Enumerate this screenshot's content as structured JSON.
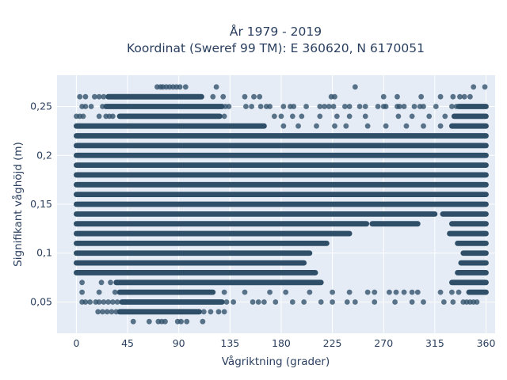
{
  "chart_data": {
    "type": "scatter",
    "title_line1": "År 1979 - 2019",
    "title_line2": "Koordinat (Sweref 99 TM): E 360620, N 6170051",
    "xlabel": "Vågriktning (grader)",
    "ylabel": "Signifikant våghöjd (m)",
    "xlim": [
      -17,
      368
    ],
    "ylim": [
      0.018,
      0.282
    ],
    "xticks": [
      0,
      45,
      90,
      135,
      180,
      225,
      270,
      315,
      360
    ],
    "xtick_labels": [
      "0",
      "45",
      "90",
      "135",
      "180",
      "225",
      "270",
      "315",
      "360"
    ],
    "yticks": [
      0.05,
      0.1,
      0.15,
      0.2,
      0.25
    ],
    "ytick_labels": [
      "0,05",
      "0,1",
      "0,15",
      "0,2",
      "0,25"
    ],
    "grid": true,
    "legend": "none",
    "colors": {
      "plot_background": "#e5ecf6",
      "grid": "#ffffff",
      "marker": "#2f4f69",
      "text": "#2a3f5f"
    },
    "series": [
      {
        "points": [
          [
            71,
            0.27
          ],
          [
            74,
            0.27
          ],
          [
            76,
            0.27
          ],
          [
            79,
            0.27
          ],
          [
            82,
            0.27
          ],
          [
            85,
            0.27
          ],
          [
            88,
            0.27
          ],
          [
            91,
            0.27
          ],
          [
            96,
            0.27
          ],
          [
            123,
            0.27
          ],
          [
            245,
            0.27
          ],
          [
            349,
            0.27
          ],
          [
            359,
            0.27
          ],
          [
            3,
            0.26
          ],
          [
            8,
            0.26
          ],
          [
            16,
            0.26
          ],
          [
            20,
            0.26
          ],
          [
            24,
            0.26
          ],
          [
            120,
            0.26
          ],
          [
            129,
            0.26
          ],
          [
            148,
            0.26
          ],
          [
            156,
            0.26
          ],
          [
            161,
            0.26
          ],
          [
            224,
            0.26
          ],
          [
            227,
            0.26
          ],
          [
            270,
            0.26
          ],
          [
            282,
            0.26
          ],
          [
            303,
            0.26
          ],
          [
            320,
            0.26
          ],
          [
            331,
            0.26
          ],
          [
            337,
            0.26
          ],
          [
            341,
            0.26
          ],
          [
            346,
            0.26
          ],
          [
            5,
            0.25
          ],
          [
            8,
            0.25
          ],
          [
            13,
            0.25
          ],
          [
            23,
            0.25
          ],
          [
            131,
            0.25
          ],
          [
            134,
            0.25
          ],
          [
            149,
            0.25
          ],
          [
            154,
            0.25
          ],
          [
            162,
            0.25
          ],
          [
            167,
            0.25
          ],
          [
            170,
            0.25
          ],
          [
            182,
            0.25
          ],
          [
            188,
            0.25
          ],
          [
            191,
            0.25
          ],
          [
            202,
            0.25
          ],
          [
            214,
            0.25
          ],
          [
            218,
            0.25
          ],
          [
            222,
            0.25
          ],
          [
            226,
            0.25
          ],
          [
            236,
            0.25
          ],
          [
            240,
            0.25
          ],
          [
            249,
            0.25
          ],
          [
            254,
            0.25
          ],
          [
            265,
            0.25
          ],
          [
            270,
            0.25
          ],
          [
            272,
            0.25
          ],
          [
            282,
            0.25
          ],
          [
            284,
            0.25
          ],
          [
            288,
            0.25
          ],
          [
            297,
            0.25
          ],
          [
            302,
            0.25
          ],
          [
            305,
            0.25
          ],
          [
            316,
            0.25
          ],
          [
            330,
            0.25
          ],
          [
            334,
            0.25
          ],
          [
            0,
            0.24
          ],
          [
            3,
            0.24
          ],
          [
            6,
            0.24
          ],
          [
            20,
            0.24
          ],
          [
            26,
            0.24
          ],
          [
            29,
            0.24
          ],
          [
            32,
            0.24
          ],
          [
            130,
            0.24
          ],
          [
            174,
            0.24
          ],
          [
            180,
            0.24
          ],
          [
            190,
            0.24
          ],
          [
            198,
            0.24
          ],
          [
            214,
            0.24
          ],
          [
            229,
            0.24
          ],
          [
            240,
            0.24
          ],
          [
            254,
            0.24
          ],
          [
            283,
            0.24
          ],
          [
            295,
            0.24
          ],
          [
            310,
            0.24
          ],
          [
            324,
            0.24
          ],
          [
            182,
            0.23
          ],
          [
            195,
            0.23
          ],
          [
            211,
            0.23
          ],
          [
            227,
            0.23
          ],
          [
            237,
            0.23
          ],
          [
            256,
            0.23
          ],
          [
            272,
            0.23
          ],
          [
            290,
            0.23
          ],
          [
            305,
            0.23
          ],
          [
            320,
            0.23
          ],
          [
            5,
            0.07
          ],
          [
            22,
            0.07
          ],
          [
            30,
            0.07
          ],
          [
            5,
            0.06
          ],
          [
            20,
            0.06
          ],
          [
            34,
            0.06
          ],
          [
            130,
            0.06
          ],
          [
            148,
            0.06
          ],
          [
            170,
            0.06
          ],
          [
            184,
            0.06
          ],
          [
            205,
            0.06
          ],
          [
            225,
            0.06
          ],
          [
            240,
            0.06
          ],
          [
            256,
            0.06
          ],
          [
            262,
            0.06
          ],
          [
            275,
            0.06
          ],
          [
            281,
            0.06
          ],
          [
            288,
            0.06
          ],
          [
            295,
            0.06
          ],
          [
            300,
            0.06
          ],
          [
            320,
            0.06
          ],
          [
            330,
            0.06
          ],
          [
            336,
            0.06
          ],
          [
            5,
            0.05
          ],
          [
            8,
            0.05
          ],
          [
            12,
            0.05
          ],
          [
            17,
            0.05
          ],
          [
            20,
            0.05
          ],
          [
            24,
            0.05
          ],
          [
            28,
            0.05
          ],
          [
            32,
            0.05
          ],
          [
            36,
            0.05
          ],
          [
            132,
            0.05
          ],
          [
            138,
            0.05
          ],
          [
            155,
            0.05
          ],
          [
            160,
            0.05
          ],
          [
            165,
            0.05
          ],
          [
            175,
            0.05
          ],
          [
            190,
            0.05
          ],
          [
            200,
            0.05
          ],
          [
            215,
            0.05
          ],
          [
            225,
            0.05
          ],
          [
            238,
            0.05
          ],
          [
            245,
            0.05
          ],
          [
            262,
            0.05
          ],
          [
            280,
            0.05
          ],
          [
            295,
            0.05
          ],
          [
            305,
            0.05
          ],
          [
            323,
            0.05
          ],
          [
            331,
            0.05
          ],
          [
            340,
            0.05
          ],
          [
            343,
            0.05
          ],
          [
            346,
            0.05
          ],
          [
            349,
            0.05
          ],
          [
            352,
            0.05
          ],
          [
            19,
            0.04
          ],
          [
            23,
            0.04
          ],
          [
            27,
            0.04
          ],
          [
            31,
            0.04
          ],
          [
            35,
            0.04
          ],
          [
            112,
            0.04
          ],
          [
            118,
            0.04
          ],
          [
            125,
            0.04
          ],
          [
            130,
            0.04
          ],
          [
            50,
            0.03
          ],
          [
            64,
            0.03
          ],
          [
            72,
            0.03
          ],
          [
            75,
            0.03
          ],
          [
            78,
            0.03
          ],
          [
            89,
            0.03
          ],
          [
            92,
            0.03
          ],
          [
            97,
            0.03
          ],
          [
            111,
            0.03
          ]
        ],
        "dense_segments": [
          {
            "y": 0.26,
            "x": [
              28,
              110
            ]
          },
          {
            "y": 0.25,
            "x": [
              26,
              128
            ]
          },
          {
            "y": 0.25,
            "x": [
              336,
              360
            ]
          },
          {
            "y": 0.24,
            "x": [
              38,
              126
            ]
          },
          {
            "y": 0.24,
            "x": [
              332,
              360
            ]
          },
          {
            "y": 0.23,
            "x": [
              0,
              165
            ]
          },
          {
            "y": 0.23,
            "x": [
              330,
              360
            ]
          },
          {
            "y": 0.22,
            "x": [
              0,
              360
            ]
          },
          {
            "y": 0.21,
            "x": [
              0,
              360
            ]
          },
          {
            "y": 0.2,
            "x": [
              0,
              360
            ]
          },
          {
            "y": 0.19,
            "x": [
              0,
              360
            ]
          },
          {
            "y": 0.18,
            "x": [
              0,
              360
            ]
          },
          {
            "y": 0.17,
            "x": [
              0,
              360
            ]
          },
          {
            "y": 0.16,
            "x": [
              0,
              360
            ]
          },
          {
            "y": 0.15,
            "x": [
              0,
              360
            ]
          },
          {
            "y": 0.14,
            "x": [
              0,
              315
            ]
          },
          {
            "y": 0.14,
            "x": [
              322,
              360
            ]
          },
          {
            "y": 0.13,
            "x": [
              0,
              255
            ]
          },
          {
            "y": 0.13,
            "x": [
              260,
              300
            ]
          },
          {
            "y": 0.13,
            "x": [
              330,
              360
            ]
          },
          {
            "y": 0.12,
            "x": [
              0,
              240
            ]
          },
          {
            "y": 0.12,
            "x": [
              328,
              360
            ]
          },
          {
            "y": 0.11,
            "x": [
              0,
              220
            ]
          },
          {
            "y": 0.11,
            "x": [
              335,
              360
            ]
          },
          {
            "y": 0.1,
            "x": [
              0,
              205
            ]
          },
          {
            "y": 0.1,
            "x": [
              340,
              360
            ]
          },
          {
            "y": 0.09,
            "x": [
              0,
              200
            ]
          },
          {
            "y": 0.09,
            "x": [
              338,
              360
            ]
          },
          {
            "y": 0.08,
            "x": [
              0,
              210
            ]
          },
          {
            "y": 0.08,
            "x": [
              335,
              360
            ]
          },
          {
            "y": 0.07,
            "x": [
              35,
              215
            ]
          },
          {
            "y": 0.07,
            "x": [
              330,
              360
            ]
          },
          {
            "y": 0.06,
            "x": [
              38,
              120
            ]
          },
          {
            "y": 0.06,
            "x": [
              345,
              360
            ]
          },
          {
            "y": 0.05,
            "x": [
              40,
              128
            ]
          },
          {
            "y": 0.04,
            "x": [
              38,
              108
            ]
          }
        ]
      }
    ]
  }
}
